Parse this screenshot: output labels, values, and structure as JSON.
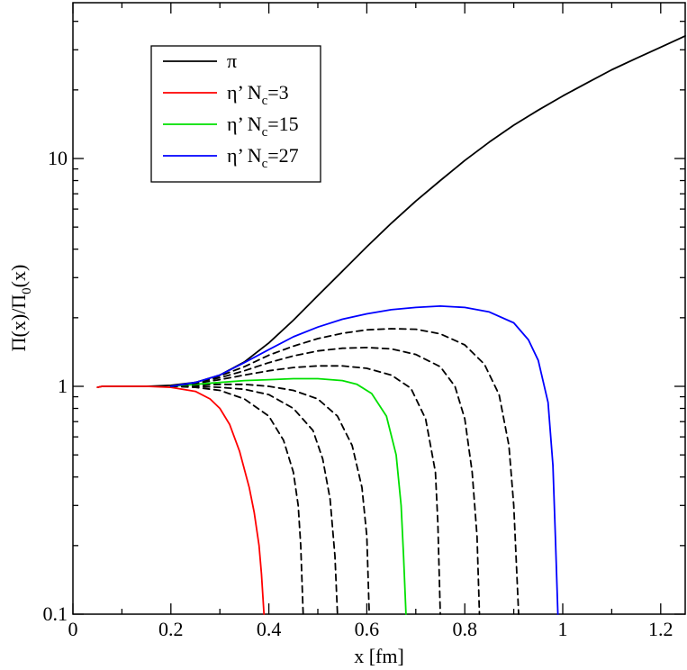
{
  "chart_data": {
    "type": "line",
    "title": "",
    "xlabel": "x [fm]",
    "ylabel_parts": {
      "a": "Π(x)/Π",
      "sub": "0",
      "b": "(x)"
    },
    "xlim": [
      0,
      1.25
    ],
    "ylim": [
      0.1,
      40
    ],
    "yscale": "log",
    "x_ticks": [
      {
        "v": 0,
        "label": "0"
      },
      {
        "v": 0.2,
        "label": "0.2"
      },
      {
        "v": 0.4,
        "label": "0.4"
      },
      {
        "v": 0.6,
        "label": "0.6"
      },
      {
        "v": 0.8,
        "label": "0.8"
      },
      {
        "v": 1.0,
        "label": "1"
      },
      {
        "v": 1.2,
        "label": "1.2"
      }
    ],
    "x_minor_ticks": [
      0.1,
      0.3,
      0.5,
      0.7,
      0.9,
      1.1
    ],
    "y_ticks": [
      {
        "v": 0.1,
        "label": "0.1"
      },
      {
        "v": 1,
        "label": "1"
      },
      {
        "v": 10,
        "label": "10"
      }
    ],
    "y_minor_ticks": [
      0.2,
      0.3,
      0.4,
      0.5,
      0.6,
      0.7,
      0.8,
      0.9,
      2,
      3,
      4,
      5,
      6,
      7,
      8,
      9,
      20,
      30,
      40
    ],
    "grid": false,
    "legend": {
      "placement": "top-left",
      "entries": [
        {
          "series": "pi",
          "text": "π",
          "sub": "",
          "rest": ""
        },
        {
          "series": "eta3",
          "text": "η’ N",
          "sub": "c",
          "rest": "=3"
        },
        {
          "series": "eta15",
          "text": "η’ N",
          "sub": "c",
          "rest": "=15"
        },
        {
          "series": "eta27",
          "text": "η’ N",
          "sub": "c",
          "rest": "=27"
        }
      ]
    },
    "series": [
      {
        "id": "pi",
        "color": "#000000",
        "dash": "solid",
        "points": [
          [
            0.05,
            0.99
          ],
          [
            0.06,
            1.0
          ],
          [
            0.1,
            1.0
          ],
          [
            0.15,
            1.0
          ],
          [
            0.2,
            1.01
          ],
          [
            0.25,
            1.04
          ],
          [
            0.3,
            1.12
          ],
          [
            0.35,
            1.28
          ],
          [
            0.4,
            1.55
          ],
          [
            0.45,
            1.95
          ],
          [
            0.5,
            2.5
          ],
          [
            0.55,
            3.2
          ],
          [
            0.6,
            4.1
          ],
          [
            0.65,
            5.2
          ],
          [
            0.7,
            6.5
          ],
          [
            0.75,
            8.0
          ],
          [
            0.8,
            9.8
          ],
          [
            0.85,
            11.8
          ],
          [
            0.9,
            14.0
          ],
          [
            0.95,
            16.3
          ],
          [
            1.0,
            18.8
          ],
          [
            1.05,
            21.5
          ],
          [
            1.1,
            24.5
          ],
          [
            1.15,
            27.5
          ],
          [
            1.2,
            30.8
          ],
          [
            1.25,
            34.5
          ]
        ]
      },
      {
        "id": "eta3",
        "color": "#ff0000",
        "dash": "solid",
        "points": [
          [
            0.05,
            0.99
          ],
          [
            0.06,
            1.0
          ],
          [
            0.1,
            1.0
          ],
          [
            0.15,
            1.0
          ],
          [
            0.2,
            0.99
          ],
          [
            0.25,
            0.95
          ],
          [
            0.28,
            0.88
          ],
          [
            0.3,
            0.8
          ],
          [
            0.32,
            0.68
          ],
          [
            0.34,
            0.52
          ],
          [
            0.36,
            0.36
          ],
          [
            0.37,
            0.28
          ],
          [
            0.38,
            0.2
          ],
          [
            0.385,
            0.15
          ],
          [
            0.39,
            0.1
          ]
        ]
      },
      {
        "id": "eta6",
        "color": "#000000",
        "dash": "dashed",
        "points": [
          [
            0.2,
            1.0
          ],
          [
            0.25,
            0.99
          ],
          [
            0.3,
            0.96
          ],
          [
            0.35,
            0.88
          ],
          [
            0.4,
            0.74
          ],
          [
            0.43,
            0.58
          ],
          [
            0.45,
            0.42
          ],
          [
            0.46,
            0.3
          ],
          [
            0.465,
            0.2
          ],
          [
            0.47,
            0.1
          ]
        ]
      },
      {
        "id": "eta9",
        "color": "#000000",
        "dash": "dashed",
        "points": [
          [
            0.2,
            1.0
          ],
          [
            0.25,
            1.0
          ],
          [
            0.3,
            0.99
          ],
          [
            0.35,
            0.97
          ],
          [
            0.4,
            0.92
          ],
          [
            0.45,
            0.8
          ],
          [
            0.49,
            0.64
          ],
          [
            0.51,
            0.48
          ],
          [
            0.525,
            0.32
          ],
          [
            0.535,
            0.18
          ],
          [
            0.54,
            0.1
          ]
        ]
      },
      {
        "id": "eta12",
        "color": "#000000",
        "dash": "dashed",
        "points": [
          [
            0.2,
            1.0
          ],
          [
            0.25,
            1.01
          ],
          [
            0.3,
            1.02
          ],
          [
            0.35,
            1.02
          ],
          [
            0.4,
            1.0
          ],
          [
            0.45,
            0.96
          ],
          [
            0.5,
            0.88
          ],
          [
            0.54,
            0.74
          ],
          [
            0.57,
            0.55
          ],
          [
            0.59,
            0.36
          ],
          [
            0.6,
            0.22
          ],
          [
            0.605,
            0.1
          ]
        ]
      },
      {
        "id": "eta15",
        "color": "#00e000",
        "dash": "solid",
        "points": [
          [
            0.2,
            1.0
          ],
          [
            0.25,
            1.02
          ],
          [
            0.3,
            1.04
          ],
          [
            0.35,
            1.06
          ],
          [
            0.4,
            1.07
          ],
          [
            0.45,
            1.08
          ],
          [
            0.5,
            1.08
          ],
          [
            0.55,
            1.06
          ],
          [
            0.58,
            1.02
          ],
          [
            0.61,
            0.93
          ],
          [
            0.64,
            0.74
          ],
          [
            0.66,
            0.5
          ],
          [
            0.67,
            0.3
          ],
          [
            0.675,
            0.18
          ],
          [
            0.68,
            0.1
          ]
        ]
      },
      {
        "id": "eta18",
        "color": "#000000",
        "dash": "dashed",
        "points": [
          [
            0.2,
            1.0
          ],
          [
            0.25,
            1.03
          ],
          [
            0.3,
            1.07
          ],
          [
            0.35,
            1.12
          ],
          [
            0.4,
            1.17
          ],
          [
            0.45,
            1.21
          ],
          [
            0.5,
            1.23
          ],
          [
            0.55,
            1.23
          ],
          [
            0.6,
            1.2
          ],
          [
            0.65,
            1.12
          ],
          [
            0.69,
            0.98
          ],
          [
            0.72,
            0.72
          ],
          [
            0.74,
            0.42
          ],
          [
            0.745,
            0.25
          ],
          [
            0.75,
            0.1
          ]
        ]
      },
      {
        "id": "eta21",
        "color": "#000000",
        "dash": "dashed",
        "points": [
          [
            0.2,
            1.0
          ],
          [
            0.25,
            1.04
          ],
          [
            0.3,
            1.09
          ],
          [
            0.35,
            1.17
          ],
          [
            0.4,
            1.27
          ],
          [
            0.45,
            1.36
          ],
          [
            0.5,
            1.43
          ],
          [
            0.55,
            1.47
          ],
          [
            0.6,
            1.48
          ],
          [
            0.65,
            1.46
          ],
          [
            0.7,
            1.38
          ],
          [
            0.75,
            1.22
          ],
          [
            0.78,
            1.0
          ],
          [
            0.8,
            0.72
          ],
          [
            0.815,
            0.42
          ],
          [
            0.825,
            0.22
          ],
          [
            0.83,
            0.1
          ]
        ]
      },
      {
        "id": "eta24",
        "color": "#000000",
        "dash": "dashed",
        "points": [
          [
            0.2,
            1.0
          ],
          [
            0.25,
            1.04
          ],
          [
            0.3,
            1.11
          ],
          [
            0.35,
            1.22
          ],
          [
            0.4,
            1.37
          ],
          [
            0.45,
            1.5
          ],
          [
            0.5,
            1.62
          ],
          [
            0.55,
            1.71
          ],
          [
            0.6,
            1.77
          ],
          [
            0.65,
            1.79
          ],
          [
            0.7,
            1.78
          ],
          [
            0.75,
            1.7
          ],
          [
            0.8,
            1.52
          ],
          [
            0.84,
            1.25
          ],
          [
            0.87,
            0.92
          ],
          [
            0.89,
            0.55
          ],
          [
            0.9,
            0.3
          ],
          [
            0.91,
            0.1
          ]
        ]
      },
      {
        "id": "eta27",
        "color": "#0000ff",
        "dash": "solid",
        "points": [
          [
            0.2,
            1.0
          ],
          [
            0.25,
            1.04
          ],
          [
            0.3,
            1.12
          ],
          [
            0.35,
            1.27
          ],
          [
            0.4,
            1.45
          ],
          [
            0.45,
            1.65
          ],
          [
            0.5,
            1.82
          ],
          [
            0.55,
            1.97
          ],
          [
            0.6,
            2.08
          ],
          [
            0.65,
            2.17
          ],
          [
            0.7,
            2.22
          ],
          [
            0.75,
            2.25
          ],
          [
            0.8,
            2.22
          ],
          [
            0.85,
            2.12
          ],
          [
            0.9,
            1.9
          ],
          [
            0.93,
            1.6
          ],
          [
            0.95,
            1.3
          ],
          [
            0.97,
            0.85
          ],
          [
            0.98,
            0.45
          ],
          [
            0.985,
            0.22
          ],
          [
            0.99,
            0.1
          ]
        ]
      }
    ]
  }
}
